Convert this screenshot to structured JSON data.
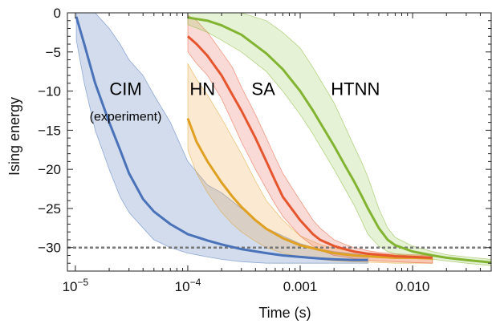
{
  "chart_data": {
    "type": "line",
    "xlabel": "Time (s)",
    "ylabel": "Ising energy",
    "x_scale": "log",
    "xlim": [
      8.5e-06,
      0.05
    ],
    "ylim": [
      -33,
      0
    ],
    "x_ticks": [
      {
        "value": 1e-05,
        "base": "10",
        "exp": "−5"
      },
      {
        "value": 0.0001,
        "base": "10",
        "exp": "−4"
      },
      {
        "value": 0.001,
        "label": "0.001"
      },
      {
        "value": 0.01,
        "label": "0.010"
      }
    ],
    "y_ticks": [
      {
        "value": 0,
        "label": "0"
      },
      {
        "value": -5,
        "label": "−5"
      },
      {
        "value": -10,
        "label": "−10"
      },
      {
        "value": -15,
        "label": "−15"
      },
      {
        "value": -20,
        "label": "−20"
      },
      {
        "value": -25,
        "label": "−25"
      },
      {
        "value": -30,
        "label": "−30"
      }
    ],
    "reference_line": {
      "y": -30,
      "style": "dashed",
      "color": "#777777"
    },
    "annotations": [
      {
        "text": "CIM",
        "x": 2.8e-05,
        "y": -10.5,
        "size": 22
      },
      {
        "text": "(experiment)",
        "x": 2.8e-05,
        "y": -13.8,
        "size": 16
      },
      {
        "text": "HN",
        "x": 0.000135,
        "y": -10.5,
        "size": 22
      },
      {
        "text": "SA",
        "x": 0.00047,
        "y": -10.5,
        "size": 22
      },
      {
        "text": "HTNN",
        "x": 0.0031,
        "y": -10.5,
        "size": 22
      }
    ],
    "series": [
      {
        "key": "cim",
        "color": "#4a72b8",
        "fill": "#4a72b8",
        "x": [
          1.02e-05,
          1.2e-05,
          1.5e-05,
          2e-05,
          2.5e-05,
          3e-05,
          4e-05,
          5e-05,
          7e-05,
          0.0001,
          0.00015,
          0.0002,
          0.0003,
          0.0005,
          0.0007,
          0.001,
          0.0015,
          0.002,
          0.003,
          0.004
        ],
        "y": [
          -0.5,
          -4,
          -9,
          -14,
          -17.5,
          -20.5,
          -23.8,
          -25.4,
          -27,
          -28.3,
          -29.1,
          -29.6,
          -30.2,
          -30.7,
          -31,
          -31.2,
          -31.4,
          -31.5,
          -31.6,
          -31.6
        ],
        "upper": [
          0,
          0,
          0,
          -2,
          -4,
          -6,
          -8,
          -10.5,
          -14,
          -19,
          -22,
          -23,
          -25,
          -27.5,
          -28.5,
          -29.5,
          -30.2,
          -30.5,
          -30.8,
          -31
        ],
        "lower": [
          -3.5,
          -9,
          -15,
          -20,
          -23.5,
          -25.5,
          -27.5,
          -29,
          -30,
          -30.7,
          -31.2,
          -31.5,
          -31.8,
          -32,
          -32,
          -32,
          -32,
          -32,
          -32,
          -32
        ]
      },
      {
        "key": "hn",
        "color": "#e0a022",
        "fill": "#f0a94a",
        "x": [
          0.0001,
          0.00012,
          0.00015,
          0.0002,
          0.00025,
          0.0003,
          0.0004,
          0.0005,
          0.0007,
          0.001,
          0.0015,
          0.002,
          0.003,
          0.005,
          0.007,
          0.01,
          0.015
        ],
        "y": [
          -13.5,
          -16.5,
          -19,
          -21.7,
          -23.5,
          -24.8,
          -26.5,
          -27.6,
          -28.8,
          -29.7,
          -30.3,
          -30.7,
          -31,
          -31.2,
          -31.3,
          -31.3,
          -31.4
        ],
        "upper": [
          -6.5,
          -8.5,
          -10.5,
          -13.5,
          -16,
          -18,
          -21.5,
          -24,
          -26.5,
          -28.5,
          -29.6,
          -30.1,
          -30.5,
          -30.8,
          -30.9,
          -31,
          -31
        ],
        "lower": [
          -17.5,
          -20.5,
          -23,
          -25.5,
          -27,
          -28,
          -29.2,
          -30,
          -30.7,
          -31.2,
          -31.5,
          -31.7,
          -31.8,
          -31.9,
          -32,
          -32,
          -32
        ]
      },
      {
        "key": "sa",
        "color": "#e5562f",
        "fill": "#ec6b5c",
        "x": [
          0.0001,
          0.00012,
          0.00015,
          0.0002,
          0.00025,
          0.0003,
          0.0004,
          0.0005,
          0.0006,
          0.0007,
          0.001,
          0.0013,
          0.0015,
          0.002,
          0.0025,
          0.003,
          0.004,
          0.005,
          0.007,
          0.01,
          0.015
        ],
        "y": [
          -3,
          -4,
          -5.5,
          -8,
          -10.5,
          -12.5,
          -16,
          -19,
          -21.5,
          -23.5,
          -26.5,
          -28.3,
          -29,
          -29.8,
          -30.2,
          -30.5,
          -30.8,
          -30.9,
          -31.1,
          -31.2,
          -31.3
        ],
        "upper": [
          -0.3,
          -1,
          -2.5,
          -5,
          -7,
          -9.5,
          -13,
          -16,
          -18.5,
          -20.5,
          -24,
          -26.5,
          -27.5,
          -29,
          -29.6,
          -30,
          -30.4,
          -30.6,
          -30.8,
          -30.9,
          -31
        ],
        "lower": [
          -5,
          -6.5,
          -8,
          -11,
          -14,
          -16.5,
          -20,
          -22.5,
          -24.5,
          -26,
          -28.5,
          -29.8,
          -30.3,
          -31,
          -31.2,
          -31.4,
          -31.6,
          -31.7,
          -31.8,
          -31.9,
          -32
        ]
      },
      {
        "key": "htnn",
        "color": "#82b432",
        "fill": "#9ccc58",
        "x": [
          0.0001,
          0.00015,
          0.0002,
          0.0003,
          0.0005,
          0.0007,
          0.001,
          0.0013,
          0.0015,
          0.002,
          0.0025,
          0.003,
          0.0035,
          0.004,
          0.005,
          0.006,
          0.007,
          0.01,
          0.015,
          0.02,
          0.03,
          0.05
        ],
        "y": [
          -0.6,
          -1,
          -1.6,
          -2.8,
          -5.2,
          -7.2,
          -10,
          -12.5,
          -14,
          -17,
          -19.5,
          -21.5,
          -23.3,
          -25,
          -27.5,
          -29,
          -29.7,
          -30.5,
          -31,
          -31.3,
          -31.6,
          -31.9
        ],
        "upper": [
          0,
          0,
          0,
          0,
          -1,
          -2.5,
          -4.5,
          -7,
          -8.5,
          -11.5,
          -14.5,
          -17,
          -19,
          -21,
          -25,
          -27.5,
          -28.7,
          -29.8,
          -30.5,
          -30.9,
          -31.2,
          -31.5
        ],
        "lower": [
          -1.5,
          -2.5,
          -3.5,
          -5,
          -7.5,
          -10,
          -13,
          -15.5,
          -17,
          -20,
          -22.5,
          -24.5,
          -26.5,
          -28.3,
          -29.8,
          -30.5,
          -30.8,
          -31.2,
          -31.5,
          -31.7,
          -32,
          -32.3
        ]
      }
    ]
  }
}
